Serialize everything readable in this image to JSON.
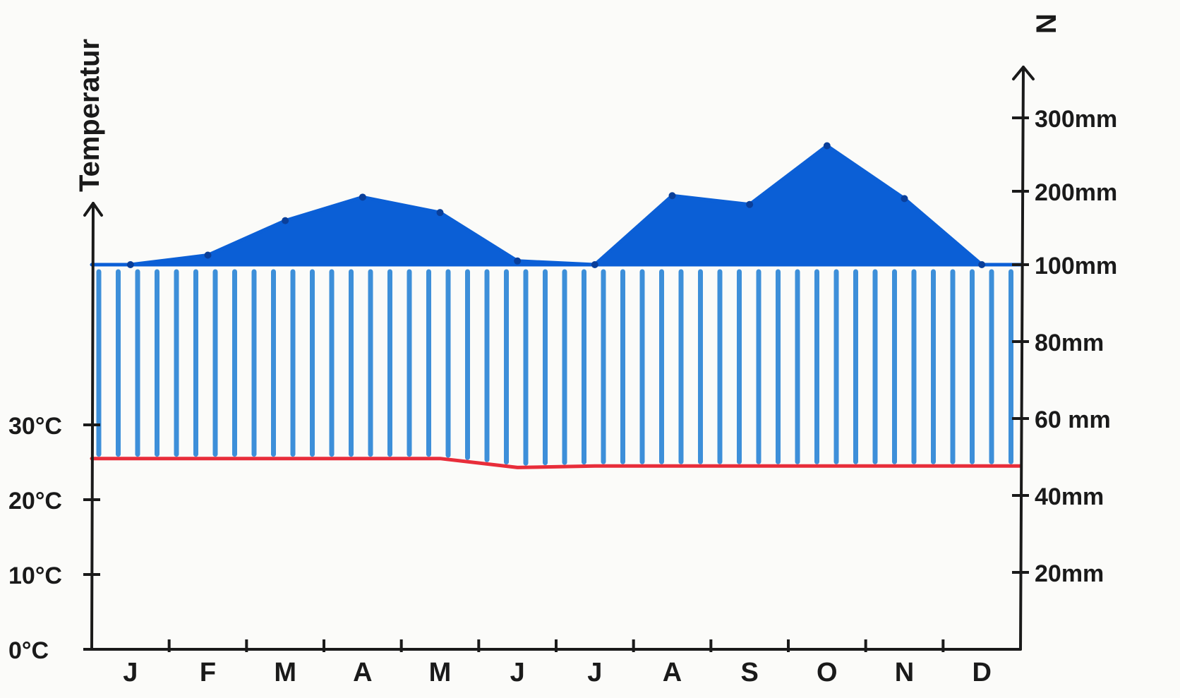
{
  "chart_data": {
    "type": "climate-diagram",
    "categories": [
      "J",
      "F",
      "M",
      "A",
      "M",
      "J",
      "J",
      "A",
      "S",
      "O",
      "N",
      "D"
    ],
    "series": [
      {
        "kind": "line",
        "axis": "left",
        "values": [
          25.5,
          25.5,
          25.5,
          25.5,
          25.5,
          24.3,
          24.5,
          24.5,
          24.5,
          24.5,
          24.5,
          24.5
        ]
      },
      {
        "kind": "area",
        "axis": "right",
        "values": [
          99,
          113,
          160,
          192,
          171,
          105,
          98,
          194,
          182,
          262,
          190,
          100
        ]
      }
    ],
    "left_axis": {
      "label": "Temperatur",
      "ticks": [
        "0°C",
        "10°C",
        "20°C",
        "30°C"
      ],
      "tick_values": [
        0,
        10,
        20,
        30
      ]
    },
    "right_axis": {
      "label": "N",
      "ticks": [
        "20mm",
        "40mm",
        "60 mm",
        "80mm",
        "100mm",
        "200mm",
        "300mm"
      ],
      "tick_values": [
        20,
        40,
        60,
        80,
        100,
        200,
        300
      ],
      "scale": "20 mm per step up to 100 mm, then 100 mm per step"
    },
    "colors": {
      "temperature": "#e82d3a",
      "precipitation": "#0b5fd6",
      "hatch": "#3d8fd9",
      "axis": "#1a1a1a"
    }
  }
}
